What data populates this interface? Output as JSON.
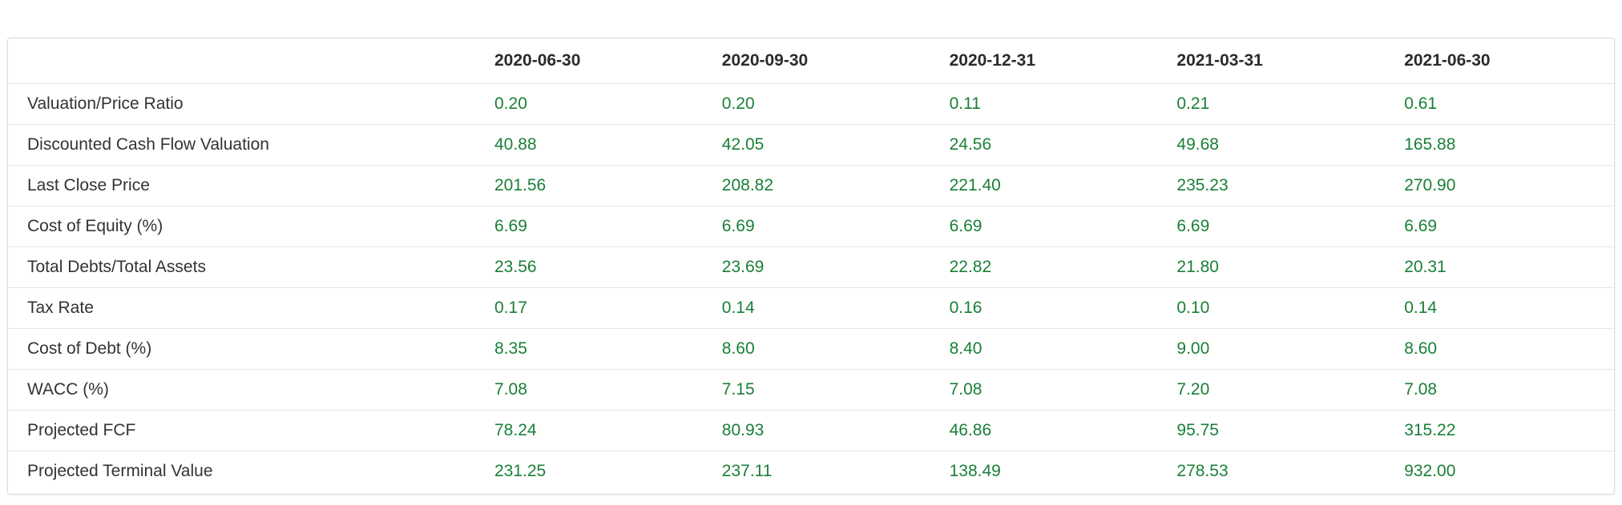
{
  "colors": {
    "value_green": "#1a7f37",
    "label_text": "#333333",
    "header_text": "#2b2b2b"
  },
  "table": {
    "header": [
      "",
      "2020-06-30",
      "2020-09-30",
      "2020-12-31",
      "2021-03-31",
      "2021-06-30"
    ],
    "rows": [
      {
        "label": "Valuation/Price Ratio",
        "values": [
          "0.20",
          "0.20",
          "0.11",
          "0.21",
          "0.61"
        ]
      },
      {
        "label": "Discounted Cash Flow Valuation",
        "values": [
          "40.88",
          "42.05",
          "24.56",
          "49.68",
          "165.88"
        ]
      },
      {
        "label": "Last Close Price",
        "values": [
          "201.56",
          "208.82",
          "221.40",
          "235.23",
          "270.90"
        ]
      },
      {
        "label": "Cost of Equity (%)",
        "values": [
          "6.69",
          "6.69",
          "6.69",
          "6.69",
          "6.69"
        ]
      },
      {
        "label": "Total Debts/Total Assets",
        "values": [
          "23.56",
          "23.69",
          "22.82",
          "21.80",
          "20.31"
        ]
      },
      {
        "label": "Tax Rate",
        "values": [
          "0.17",
          "0.14",
          "0.16",
          "0.10",
          "0.14"
        ]
      },
      {
        "label": "Cost of Debt (%)",
        "values": [
          "8.35",
          "8.60",
          "8.40",
          "9.00",
          "8.60"
        ]
      },
      {
        "label": "WACC (%)",
        "values": [
          "7.08",
          "7.15",
          "7.08",
          "7.20",
          "7.08"
        ]
      },
      {
        "label": "Projected FCF",
        "values": [
          "78.24",
          "80.93",
          "46.86",
          "95.75",
          "315.22"
        ]
      },
      {
        "label": "Projected Terminal Value",
        "values": [
          "231.25",
          "237.11",
          "138.49",
          "278.53",
          "932.00"
        ]
      }
    ]
  }
}
